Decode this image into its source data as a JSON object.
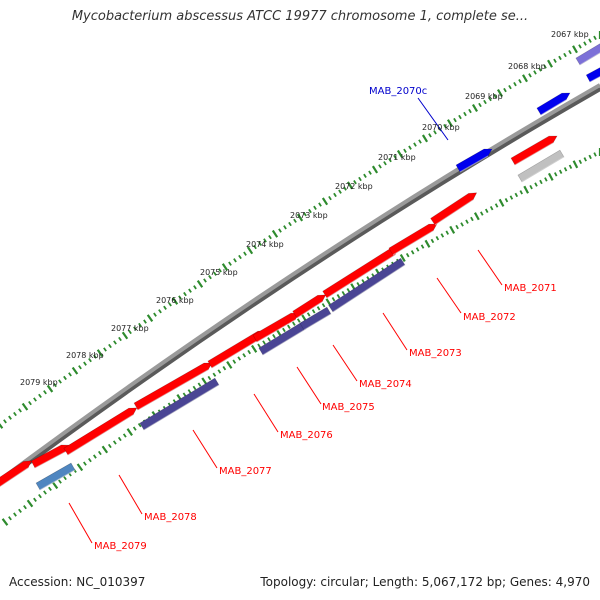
{
  "title": "Mycobacterium abscessus ATCC 19977 chromosome 1, complete se...",
  "footer": {
    "accession": "Accession: NC_010397",
    "summary": "Topology: circular; Length: 5,067,172 bp; Genes: 4,970"
  },
  "colors": {
    "backbone": "#8a8a8a",
    "tick": "#2e8b2e",
    "forward_gene": "#ff0000",
    "reverse_gene": "#4a4594",
    "highlight_gene": "#0000ee",
    "pseudo_gene": "#c0c0c0",
    "steel_gene": "#4f86c0",
    "label_line_red": "#ff0000",
    "label_line_blue": "#0000cc"
  },
  "scale_labels": [
    "2067 kbp",
    "2068 kbp",
    "2069 kbp",
    "2070 kbp",
    "2071 kbp",
    "2072 kbp",
    "2073 kbp",
    "2074 kbp",
    "2075 kbp",
    "2076 kbp",
    "2077 kbp",
    "2078 kbp",
    "2079 kbp"
  ],
  "gene_labels": [
    {
      "text": "MAB_2070c",
      "color": "#0000cc"
    },
    {
      "text": "MAB_2071",
      "color": "#ff0000"
    },
    {
      "text": "MAB_2072",
      "color": "#ff0000"
    },
    {
      "text": "MAB_2073",
      "color": "#ff0000"
    },
    {
      "text": "MAB_2074",
      "color": "#ff0000"
    },
    {
      "text": "MAB_2075",
      "color": "#ff0000"
    },
    {
      "text": "MAB_2076",
      "color": "#ff0000"
    },
    {
      "text": "MAB_2077",
      "color": "#ff0000"
    },
    {
      "text": "MAB_2078",
      "color": "#ff0000"
    },
    {
      "text": "MAB_2079",
      "color": "#ff0000"
    }
  ]
}
